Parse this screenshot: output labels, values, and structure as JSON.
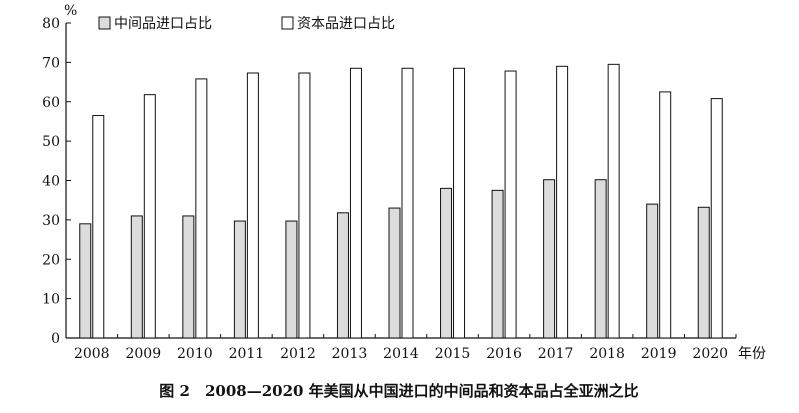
{
  "chart_data": {
    "type": "bar",
    "title": "",
    "caption": "图 2　2008—2020 年美国从中国进口的中间品和资本品占全亚洲之比",
    "ylabel": "%",
    "xlabel": "年份",
    "ylim": [
      0,
      80
    ],
    "yticks": [
      0,
      10,
      20,
      30,
      40,
      50,
      60,
      70,
      80
    ],
    "categories": [
      "2008",
      "2009",
      "2010",
      "2011",
      "2012",
      "2013",
      "2014",
      "2015",
      "2016",
      "2017",
      "2018",
      "2019",
      "2020"
    ],
    "series": [
      {
        "name": "中间品进口占比",
        "color": "#dcdcdc",
        "values": [
          29.0,
          31.0,
          31.0,
          29.7,
          29.7,
          31.8,
          33.0,
          38.0,
          37.5,
          40.2,
          40.2,
          34.0,
          33.2
        ]
      },
      {
        "name": "资本品进口占比",
        "color": "#ffffff",
        "values": [
          56.5,
          61.8,
          65.8,
          67.3,
          67.3,
          68.5,
          68.5,
          68.5,
          67.8,
          69.0,
          69.5,
          62.5,
          60.8
        ]
      }
    ],
    "grid": false,
    "legend_position": "top-left"
  }
}
